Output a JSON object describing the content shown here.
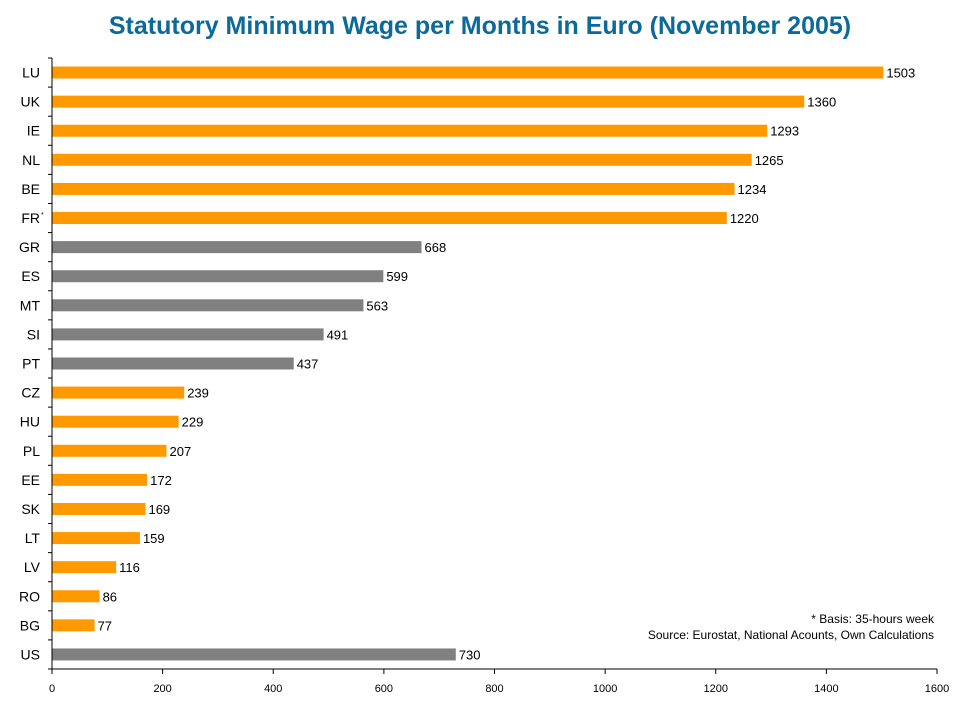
{
  "chart_data": {
    "type": "bar",
    "orientation": "horizontal",
    "title": "Statutory Minimum Wage per Months in Euro (November 2005)",
    "categories": [
      "LU",
      "UK",
      "IE",
      "NL",
      "BE",
      "FR",
      "GR",
      "ES",
      "MT",
      "SI",
      "PT",
      "CZ",
      "HU",
      "PL",
      "EE",
      "SK",
      "LT",
      "LV",
      "RO",
      "BG",
      "US"
    ],
    "category_marks": {
      "FR": "*"
    },
    "values": [
      1503,
      1360,
      1293,
      1265,
      1234,
      1220,
      668,
      599,
      563,
      491,
      437,
      239,
      229,
      207,
      172,
      169,
      159,
      116,
      86,
      77,
      730
    ],
    "bar_colors": [
      "orange",
      "orange",
      "orange",
      "orange",
      "orange",
      "orange",
      "gray",
      "gray",
      "gray",
      "gray",
      "gray",
      "orange",
      "orange",
      "orange",
      "orange",
      "orange",
      "orange",
      "orange",
      "orange",
      "orange",
      "gray"
    ],
    "xlim": [
      0,
      1600
    ],
    "xticks": [
      0,
      200,
      400,
      600,
      800,
      1000,
      1200,
      1400,
      1600
    ],
    "grid": false,
    "notes": [
      "* Basis: 35-hours week",
      "Source: Eurostat, National Acounts, Own Calculations"
    ]
  },
  "colors": {
    "orange": "#ff9900",
    "gray": "#808080",
    "title": "#0b6a9a"
  }
}
